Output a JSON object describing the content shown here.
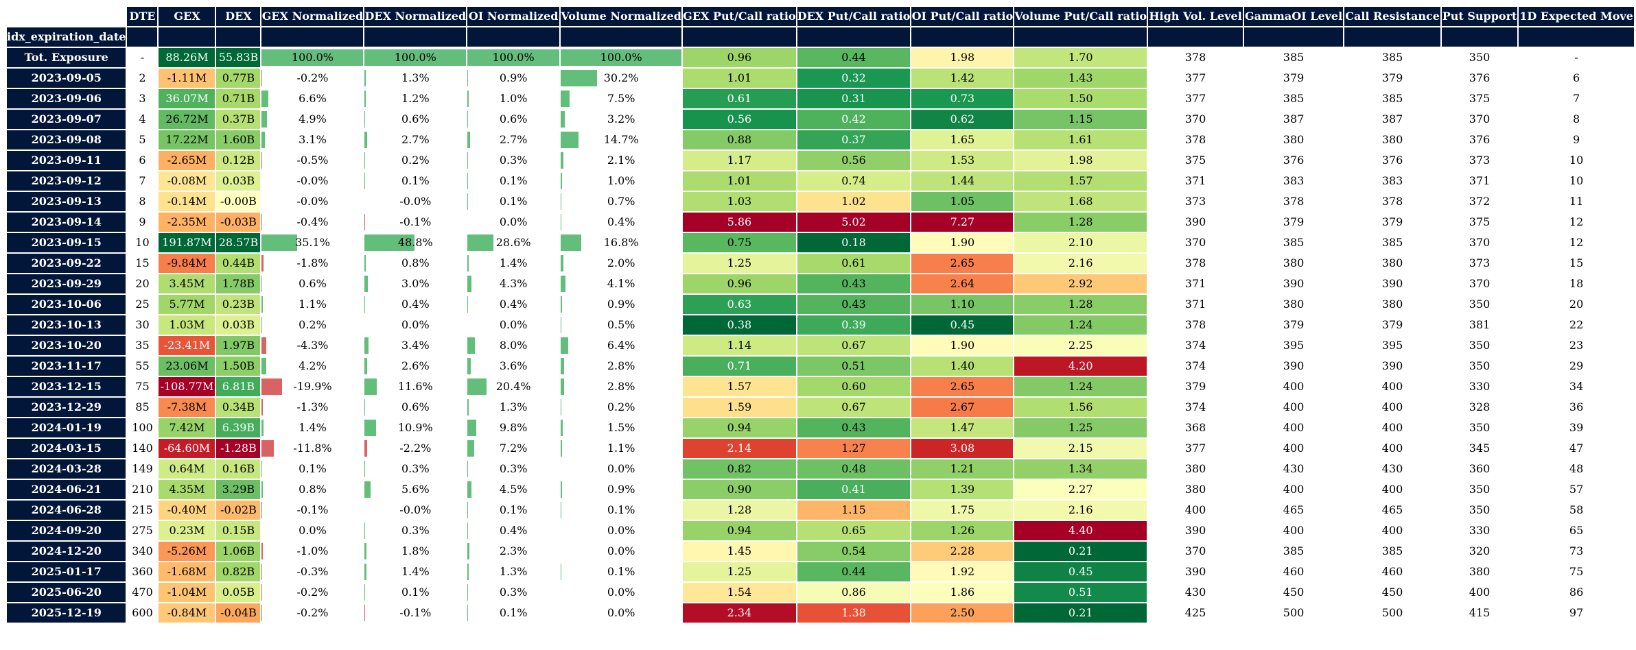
{
  "table": {
    "index_label": "idx_expiration_date",
    "columns": [
      "DTE",
      "GEX",
      "DEX",
      "GEX Normalized",
      "DEX Normalized",
      "OI Normalized",
      "Volume Normalized",
      "GEX Put/Call ratio",
      "DEX Put/Call ratio",
      "OI Put/Call ratio",
      "Volume Put/Call ratio",
      "High Vol. Level",
      "GammaOI Level",
      "Call Resistance",
      "Put Support",
      "1D Expected Move"
    ]
  },
  "chart_data": {
    "type": "table",
    "title": "",
    "columns": [
      "DTE",
      "GEX",
      "DEX",
      "GEX Normalized",
      "DEX Normalized",
      "OI Normalized",
      "Volume Normalized",
      "GEX Put/Call ratio",
      "DEX Put/Call ratio",
      "OI Put/Call ratio",
      "Volume Put/Call ratio",
      "High Vol. Level",
      "GammaOI Level",
      "Call Resistance",
      "Put Support",
      "1D Expected Move"
    ],
    "rows": [
      {
        "date": "Tot. Exposure",
        "dte": "-",
        "gex": "88.26M",
        "dex": "55.83B",
        "gex_norm": "100.0%",
        "dex_norm": "100.0%",
        "oi_norm": "100.0%",
        "vol_norm": "100.0%",
        "gex_pcr": "0.96",
        "dex_pcr": "0.44",
        "oi_pcr": "1.98",
        "vol_pcr": "1.70",
        "high_vol": "378",
        "gamma_oi": "385",
        "call_res": "385",
        "put_sup": "350",
        "exp_move": "-"
      },
      {
        "date": "2023-09-05",
        "dte": "2",
        "gex": "-1.11M",
        "dex": "0.77B",
        "gex_norm": "-0.2%",
        "dex_norm": "1.3%",
        "oi_norm": "0.9%",
        "vol_norm": "30.2%",
        "gex_pcr": "1.01",
        "dex_pcr": "0.32",
        "oi_pcr": "1.42",
        "vol_pcr": "1.43",
        "high_vol": "377",
        "gamma_oi": "379",
        "call_res": "379",
        "put_sup": "376",
        "exp_move": "6"
      },
      {
        "date": "2023-09-06",
        "dte": "3",
        "gex": "36.07M",
        "dex": "0.71B",
        "gex_norm": "6.6%",
        "dex_norm": "1.2%",
        "oi_norm": "1.0%",
        "vol_norm": "7.5%",
        "gex_pcr": "0.61",
        "dex_pcr": "0.31",
        "oi_pcr": "0.73",
        "vol_pcr": "1.50",
        "high_vol": "377",
        "gamma_oi": "385",
        "call_res": "385",
        "put_sup": "375",
        "exp_move": "7"
      },
      {
        "date": "2023-09-07",
        "dte": "4",
        "gex": "26.72M",
        "dex": "0.37B",
        "gex_norm": "4.9%",
        "dex_norm": "0.6%",
        "oi_norm": "0.6%",
        "vol_norm": "3.2%",
        "gex_pcr": "0.56",
        "dex_pcr": "0.42",
        "oi_pcr": "0.62",
        "vol_pcr": "1.15",
        "high_vol": "370",
        "gamma_oi": "387",
        "call_res": "387",
        "put_sup": "370",
        "exp_move": "8"
      },
      {
        "date": "2023-09-08",
        "dte": "5",
        "gex": "17.22M",
        "dex": "1.60B",
        "gex_norm": "3.1%",
        "dex_norm": "2.7%",
        "oi_norm": "2.7%",
        "vol_norm": "14.7%",
        "gex_pcr": "0.88",
        "dex_pcr": "0.37",
        "oi_pcr": "1.65",
        "vol_pcr": "1.61",
        "high_vol": "378",
        "gamma_oi": "380",
        "call_res": "380",
        "put_sup": "376",
        "exp_move": "9"
      },
      {
        "date": "2023-09-11",
        "dte": "6",
        "gex": "-2.65M",
        "dex": "0.12B",
        "gex_norm": "-0.5%",
        "dex_norm": "0.2%",
        "oi_norm": "0.3%",
        "vol_norm": "2.1%",
        "gex_pcr": "1.17",
        "dex_pcr": "0.56",
        "oi_pcr": "1.53",
        "vol_pcr": "1.98",
        "high_vol": "375",
        "gamma_oi": "376",
        "call_res": "376",
        "put_sup": "373",
        "exp_move": "10"
      },
      {
        "date": "2023-09-12",
        "dte": "7",
        "gex": "-0.08M",
        "dex": "0.03B",
        "gex_norm": "-0.0%",
        "dex_norm": "0.1%",
        "oi_norm": "0.1%",
        "vol_norm": "1.0%",
        "gex_pcr": "1.01",
        "dex_pcr": "0.74",
        "oi_pcr": "1.44",
        "vol_pcr": "1.57",
        "high_vol": "371",
        "gamma_oi": "383",
        "call_res": "383",
        "put_sup": "371",
        "exp_move": "10"
      },
      {
        "date": "2023-09-13",
        "dte": "8",
        "gex": "-0.14M",
        "dex": "-0.00B",
        "gex_norm": "-0.0%",
        "dex_norm": "-0.0%",
        "oi_norm": "0.1%",
        "vol_norm": "0.7%",
        "gex_pcr": "1.03",
        "dex_pcr": "1.02",
        "oi_pcr": "1.05",
        "vol_pcr": "1.68",
        "high_vol": "373",
        "gamma_oi": "378",
        "call_res": "378",
        "put_sup": "372",
        "exp_move": "11"
      },
      {
        "date": "2023-09-14",
        "dte": "9",
        "gex": "-2.35M",
        "dex": "-0.03B",
        "gex_norm": "-0.4%",
        "dex_norm": "-0.1%",
        "oi_norm": "0.0%",
        "vol_norm": "0.4%",
        "gex_pcr": "5.86",
        "dex_pcr": "5.02",
        "oi_pcr": "7.27",
        "vol_pcr": "1.28",
        "high_vol": "390",
        "gamma_oi": "379",
        "call_res": "379",
        "put_sup": "375",
        "exp_move": "12"
      },
      {
        "date": "2023-09-15",
        "dte": "10",
        "gex": "191.87M",
        "dex": "28.57B",
        "gex_norm": "35.1%",
        "dex_norm": "48.8%",
        "oi_norm": "28.6%",
        "vol_norm": "16.8%",
        "gex_pcr": "0.75",
        "dex_pcr": "0.18",
        "oi_pcr": "1.90",
        "vol_pcr": "2.10",
        "high_vol": "370",
        "gamma_oi": "385",
        "call_res": "385",
        "put_sup": "370",
        "exp_move": "12"
      },
      {
        "date": "2023-09-22",
        "dte": "15",
        "gex": "-9.84M",
        "dex": "0.44B",
        "gex_norm": "-1.8%",
        "dex_norm": "0.8%",
        "oi_norm": "1.4%",
        "vol_norm": "2.0%",
        "gex_pcr": "1.25",
        "dex_pcr": "0.61",
        "oi_pcr": "2.65",
        "vol_pcr": "2.16",
        "high_vol": "378",
        "gamma_oi": "380",
        "call_res": "380",
        "put_sup": "373",
        "exp_move": "15"
      },
      {
        "date": "2023-09-29",
        "dte": "20",
        "gex": "3.45M",
        "dex": "1.78B",
        "gex_norm": "0.6%",
        "dex_norm": "3.0%",
        "oi_norm": "4.3%",
        "vol_norm": "4.1%",
        "gex_pcr": "0.96",
        "dex_pcr": "0.43",
        "oi_pcr": "2.64",
        "vol_pcr": "2.92",
        "high_vol": "371",
        "gamma_oi": "390",
        "call_res": "390",
        "put_sup": "370",
        "exp_move": "18"
      },
      {
        "date": "2023-10-06",
        "dte": "25",
        "gex": "5.77M",
        "dex": "0.23B",
        "gex_norm": "1.1%",
        "dex_norm": "0.4%",
        "oi_norm": "0.4%",
        "vol_norm": "0.9%",
        "gex_pcr": "0.63",
        "dex_pcr": "0.43",
        "oi_pcr": "1.10",
        "vol_pcr": "1.28",
        "high_vol": "371",
        "gamma_oi": "380",
        "call_res": "380",
        "put_sup": "350",
        "exp_move": "20"
      },
      {
        "date": "2023-10-13",
        "dte": "30",
        "gex": "1.03M",
        "dex": "0.03B",
        "gex_norm": "0.2%",
        "dex_norm": "0.0%",
        "oi_norm": "0.0%",
        "vol_norm": "0.5%",
        "gex_pcr": "0.38",
        "dex_pcr": "0.39",
        "oi_pcr": "0.45",
        "vol_pcr": "1.24",
        "high_vol": "378",
        "gamma_oi": "379",
        "call_res": "379",
        "put_sup": "381",
        "exp_move": "22"
      },
      {
        "date": "2023-10-20",
        "dte": "35",
        "gex": "-23.41M",
        "dex": "1.97B",
        "gex_norm": "-4.3%",
        "dex_norm": "3.4%",
        "oi_norm": "8.0%",
        "vol_norm": "6.4%",
        "gex_pcr": "1.14",
        "dex_pcr": "0.67",
        "oi_pcr": "1.90",
        "vol_pcr": "2.25",
        "high_vol": "374",
        "gamma_oi": "395",
        "call_res": "395",
        "put_sup": "350",
        "exp_move": "23"
      },
      {
        "date": "2023-11-17",
        "dte": "55",
        "gex": "23.06M",
        "dex": "1.50B",
        "gex_norm": "4.2%",
        "dex_norm": "2.6%",
        "oi_norm": "3.6%",
        "vol_norm": "2.8%",
        "gex_pcr": "0.71",
        "dex_pcr": "0.51",
        "oi_pcr": "1.40",
        "vol_pcr": "4.20",
        "high_vol": "374",
        "gamma_oi": "390",
        "call_res": "390",
        "put_sup": "350",
        "exp_move": "29"
      },
      {
        "date": "2023-12-15",
        "dte": "75",
        "gex": "-108.77M",
        "dex": "6.81B",
        "gex_norm": "-19.9%",
        "dex_norm": "11.6%",
        "oi_norm": "20.4%",
        "vol_norm": "2.8%",
        "gex_pcr": "1.57",
        "dex_pcr": "0.60",
        "oi_pcr": "2.65",
        "vol_pcr": "1.24",
        "high_vol": "379",
        "gamma_oi": "400",
        "call_res": "400",
        "put_sup": "330",
        "exp_move": "34"
      },
      {
        "date": "2023-12-29",
        "dte": "85",
        "gex": "-7.38M",
        "dex": "0.34B",
        "gex_norm": "-1.3%",
        "dex_norm": "0.6%",
        "oi_norm": "1.3%",
        "vol_norm": "0.2%",
        "gex_pcr": "1.59",
        "dex_pcr": "0.67",
        "oi_pcr": "2.67",
        "vol_pcr": "1.56",
        "high_vol": "374",
        "gamma_oi": "400",
        "call_res": "400",
        "put_sup": "328",
        "exp_move": "36"
      },
      {
        "date": "2024-01-19",
        "dte": "100",
        "gex": "7.42M",
        "dex": "6.39B",
        "gex_norm": "1.4%",
        "dex_norm": "10.9%",
        "oi_norm": "9.8%",
        "vol_norm": "1.5%",
        "gex_pcr": "0.94",
        "dex_pcr": "0.43",
        "oi_pcr": "1.47",
        "vol_pcr": "1.25",
        "high_vol": "368",
        "gamma_oi": "400",
        "call_res": "400",
        "put_sup": "350",
        "exp_move": "39"
      },
      {
        "date": "2024-03-15",
        "dte": "140",
        "gex": "-64.60M",
        "dex": "-1.28B",
        "gex_norm": "-11.8%",
        "dex_norm": "-2.2%",
        "oi_norm": "7.2%",
        "vol_norm": "1.1%",
        "gex_pcr": "2.14",
        "dex_pcr": "1.27",
        "oi_pcr": "3.08",
        "vol_pcr": "2.15",
        "high_vol": "377",
        "gamma_oi": "400",
        "call_res": "400",
        "put_sup": "345",
        "exp_move": "47"
      },
      {
        "date": "2024-03-28",
        "dte": "149",
        "gex": "0.64M",
        "dex": "0.16B",
        "gex_norm": "0.1%",
        "dex_norm": "0.3%",
        "oi_norm": "0.3%",
        "vol_norm": "0.0%",
        "gex_pcr": "0.82",
        "dex_pcr": "0.48",
        "oi_pcr": "1.21",
        "vol_pcr": "1.34",
        "high_vol": "380",
        "gamma_oi": "430",
        "call_res": "430",
        "put_sup": "360",
        "exp_move": "48"
      },
      {
        "date": "2024-06-21",
        "dte": "210",
        "gex": "4.35M",
        "dex": "3.29B",
        "gex_norm": "0.8%",
        "dex_norm": "5.6%",
        "oi_norm": "4.5%",
        "vol_norm": "0.9%",
        "gex_pcr": "0.90",
        "dex_pcr": "0.41",
        "oi_pcr": "1.39",
        "vol_pcr": "2.27",
        "high_vol": "380",
        "gamma_oi": "400",
        "call_res": "400",
        "put_sup": "350",
        "exp_move": "57"
      },
      {
        "date": "2024-06-28",
        "dte": "215",
        "gex": "-0.40M",
        "dex": "-0.02B",
        "gex_norm": "-0.1%",
        "dex_norm": "-0.0%",
        "oi_norm": "0.1%",
        "vol_norm": "0.1%",
        "gex_pcr": "1.28",
        "dex_pcr": "1.15",
        "oi_pcr": "1.75",
        "vol_pcr": "2.16",
        "high_vol": "400",
        "gamma_oi": "465",
        "call_res": "465",
        "put_sup": "350",
        "exp_move": "58"
      },
      {
        "date": "2024-09-20",
        "dte": "275",
        "gex": "0.23M",
        "dex": "0.15B",
        "gex_norm": "0.0%",
        "dex_norm": "0.3%",
        "oi_norm": "0.4%",
        "vol_norm": "0.0%",
        "gex_pcr": "0.94",
        "dex_pcr": "0.65",
        "oi_pcr": "1.26",
        "vol_pcr": "4.40",
        "high_vol": "390",
        "gamma_oi": "400",
        "call_res": "400",
        "put_sup": "330",
        "exp_move": "65"
      },
      {
        "date": "2024-12-20",
        "dte": "340",
        "gex": "-5.26M",
        "dex": "1.06B",
        "gex_norm": "-1.0%",
        "dex_norm": "1.8%",
        "oi_norm": "2.3%",
        "vol_norm": "0.0%",
        "gex_pcr": "1.45",
        "dex_pcr": "0.54",
        "oi_pcr": "2.28",
        "vol_pcr": "0.21",
        "high_vol": "370",
        "gamma_oi": "385",
        "call_res": "385",
        "put_sup": "320",
        "exp_move": "73"
      },
      {
        "date": "2025-01-17",
        "dte": "360",
        "gex": "-1.68M",
        "dex": "0.82B",
        "gex_norm": "-0.3%",
        "dex_norm": "1.4%",
        "oi_norm": "1.3%",
        "vol_norm": "0.1%",
        "gex_pcr": "1.25",
        "dex_pcr": "0.44",
        "oi_pcr": "1.92",
        "vol_pcr": "0.45",
        "high_vol": "390",
        "gamma_oi": "460",
        "call_res": "460",
        "put_sup": "380",
        "exp_move": "75"
      },
      {
        "date": "2025-06-20",
        "dte": "470",
        "gex": "-1.04M",
        "dex": "0.05B",
        "gex_norm": "-0.2%",
        "dex_norm": "0.1%",
        "oi_norm": "0.3%",
        "vol_norm": "0.0%",
        "gex_pcr": "1.54",
        "dex_pcr": "0.86",
        "oi_pcr": "1.86",
        "vol_pcr": "0.51",
        "high_vol": "430",
        "gamma_oi": "450",
        "call_res": "450",
        "put_sup": "400",
        "exp_move": "86"
      },
      {
        "date": "2025-12-19",
        "dte": "600",
        "gex": "-0.84M",
        "dex": "-0.04B",
        "gex_norm": "-0.2%",
        "dex_norm": "-0.1%",
        "oi_norm": "0.1%",
        "vol_norm": "0.0%",
        "gex_pcr": "2.34",
        "dex_pcr": "1.38",
        "oi_pcr": "2.50",
        "vol_pcr": "0.21",
        "high_vol": "425",
        "gamma_oi": "500",
        "call_res": "500",
        "put_sup": "415",
        "exp_move": "97"
      }
    ]
  },
  "colors": {
    "header_bg": "#011638",
    "header_text": "#ffffff",
    "bar_positive": "#63be7b",
    "bar_negative": "#d96262",
    "colormap": "RdYlGn"
  }
}
